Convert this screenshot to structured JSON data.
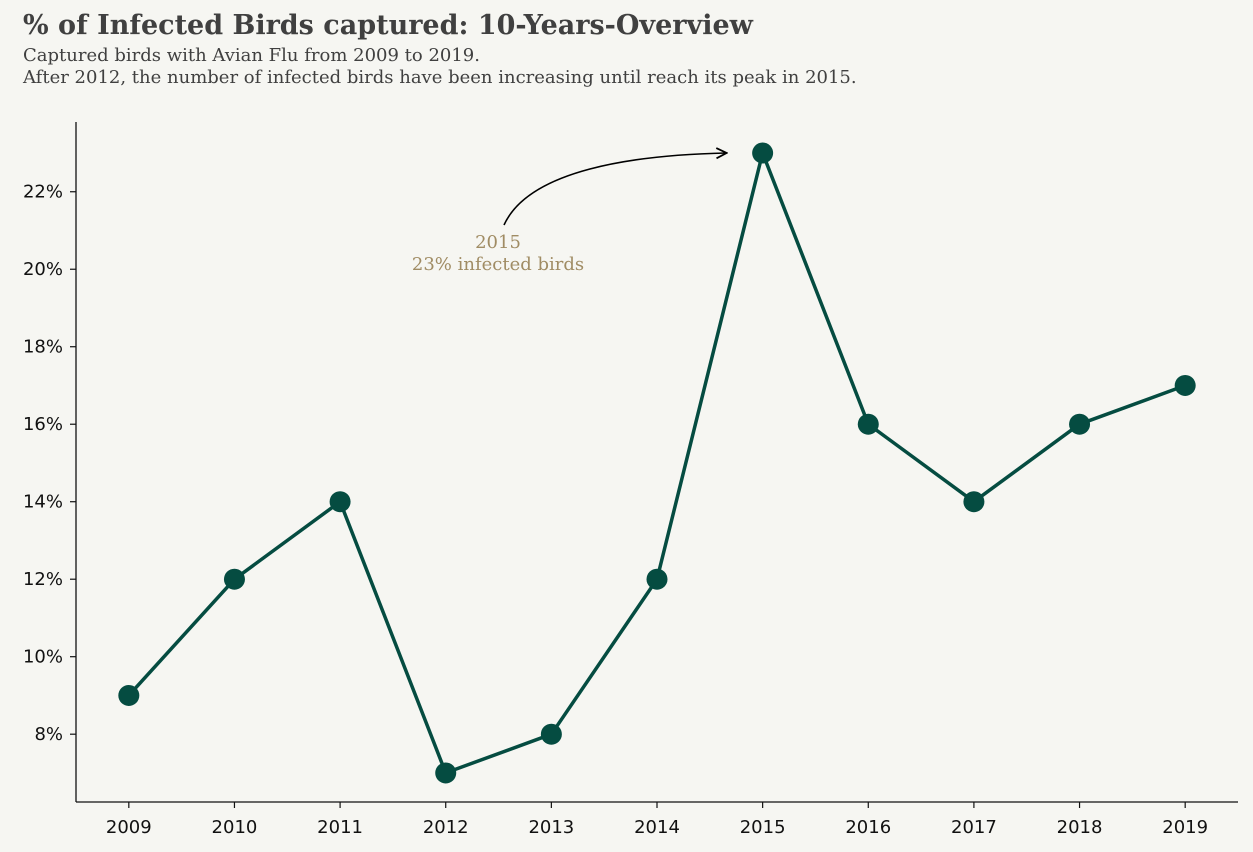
{
  "chart_data": {
    "type": "line",
    "title": "% of Infected Birds captured: 10-Years-Overview",
    "subtitle_lines": [
      "Captured birds with Avian Flu from 2009 to 2019.",
      "After 2012, the number of infected birds have been increasing until reach its peak in 2015."
    ],
    "x": [
      2009,
      2010,
      2011,
      2012,
      2013,
      2014,
      2015,
      2016,
      2017,
      2018,
      2019
    ],
    "series": [
      {
        "values": [
          9,
          12,
          14,
          7,
          8,
          12,
          23,
          16,
          14,
          16,
          17
        ]
      }
    ],
    "y_ticks": [
      8,
      10,
      12,
      14,
      16,
      18,
      20,
      22
    ],
    "y_tick_labels": [
      "8%",
      "10%",
      "12%",
      "14%",
      "16%",
      "18%",
      "20%",
      "22%"
    ],
    "x_tick_labels": [
      "2009",
      "2010",
      "2011",
      "2012",
      "2013",
      "2014",
      "2015",
      "2016",
      "2017",
      "2018",
      "2019"
    ],
    "ylim": [
      6.25,
      23.8
    ],
    "xlim": [
      2008.5,
      2019.5
    ],
    "xlabel": "",
    "ylabel": "",
    "grid": false,
    "line_color": "#054c41",
    "annotation": {
      "lines": [
        "2015",
        "23% infected birds"
      ],
      "target_x": 2015,
      "target_y": 23,
      "color": "#a08c64"
    }
  }
}
